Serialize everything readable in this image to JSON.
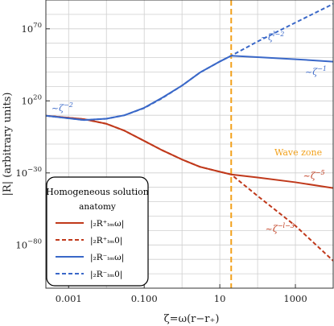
{
  "chart_data": {
    "type": "line",
    "xlabel": "ζ=ω(r−r₊)",
    "ylabel": "|R| (arbitrary units)",
    "x_scale": "log",
    "y_scale": "log",
    "xlim": [
      0.00025,
      10000
    ],
    "ylim": [
      1e-110,
      1e+90
    ],
    "grid": true,
    "x_ticks": [
      {
        "value": 0.001,
        "label": "0.001"
      },
      {
        "value": 0.1,
        "label": "0.100"
      },
      {
        "value": 10,
        "label": "10"
      },
      {
        "value": 1000,
        "label": "1000"
      }
    ],
    "y_ticks": [
      {
        "exp": 70,
        "label": "10^70"
      },
      {
        "exp": 20,
        "label": "10^20"
      },
      {
        "exp": -30,
        "label": "10^−30"
      },
      {
        "exp": -80,
        "label": "10^−80"
      }
    ],
    "vertical_line": {
      "x": 20,
      "color": "#f2a11b",
      "label": "Wave zone"
    },
    "series": [
      {
        "name": "|₂R⁺ₗₘω|",
        "color": "#c0391b",
        "dash": false,
        "points": [
          [
            0.00025,
            9.7
          ],
          [
            0.0025,
            7.3
          ],
          [
            0.01,
            4.1
          ],
          [
            0.03,
            -0.7
          ],
          [
            0.1,
            -7.8
          ],
          [
            0.3,
            -14.3
          ],
          [
            1,
            -20.7
          ],
          [
            3,
            -25.8
          ],
          [
            10,
            -29.2
          ],
          [
            20,
            -31.1
          ],
          [
            100,
            -33.2
          ],
          [
            1000,
            -36.5
          ],
          [
            10000,
            -40.5
          ]
        ]
      },
      {
        "name": "|₂R⁺ₗₘ0|",
        "color": "#c0391b",
        "dash": true,
        "points": [
          [
            0.00025,
            9.7
          ],
          [
            0.0025,
            7.3
          ],
          [
            0.01,
            4.1
          ],
          [
            0.03,
            -0.7
          ],
          [
            0.1,
            -7.8
          ],
          [
            0.3,
            -14.3
          ],
          [
            1,
            -20.7
          ],
          [
            3,
            -25.8
          ],
          [
            10,
            -29.2
          ],
          [
            20,
            -31.1
          ],
          [
            100,
            -46.0
          ],
          [
            1000,
            -66.7
          ],
          [
            10000,
            -91.0
          ]
        ]
      },
      {
        "name": "|₂R⁻ₗₘω|",
        "color": "#3a68c8",
        "dash": false,
        "points": [
          [
            0.00025,
            9.7
          ],
          [
            0.0025,
            6.7
          ],
          [
            0.01,
            7.6
          ],
          [
            0.03,
            10.0
          ],
          [
            0.1,
            15.2
          ],
          [
            0.3,
            22.2
          ],
          [
            1,
            30.6
          ],
          [
            3,
            39.7
          ],
          [
            10,
            47.3
          ],
          [
            20,
            51.3
          ],
          [
            100,
            50.3
          ],
          [
            1000,
            48.9
          ],
          [
            10000,
            47.2
          ]
        ]
      },
      {
        "name": "|₂R⁻ₗₘ0|",
        "color": "#3a68c8",
        "dash": true,
        "points": [
          [
            0.00025,
            9.7
          ],
          [
            0.0025,
            6.7
          ],
          [
            0.01,
            7.6
          ],
          [
            0.03,
            10.0
          ],
          [
            0.1,
            15.0
          ],
          [
            0.3,
            21.9
          ],
          [
            1,
            30.6
          ],
          [
            3,
            39.7
          ],
          [
            10,
            47.3
          ],
          [
            20,
            51.3
          ],
          [
            100,
            61.2
          ],
          [
            1000,
            74.3
          ],
          [
            10000,
            87.3
          ]
        ]
      }
    ],
    "annotations": [
      {
        "text": "~ζ^−2",
        "x": 0.00035,
        "yexp": 13.0,
        "color": "#3a68c8"
      },
      {
        "text": "~ζ^−1",
        "x": 1800,
        "yexp": 38.0,
        "color": "#3a68c8"
      },
      {
        "text": "~ζ^l−2",
        "x": 120,
        "yexp": 62.0,
        "color": "#3a68c8"
      },
      {
        "text": "~ζ^−5",
        "x": 1600,
        "yexp": -34.0,
        "color": "#c0391b"
      },
      {
        "text": "~ζ^−l−3",
        "x": 160,
        "yexp": -71.0,
        "color": "#c0391b"
      }
    ]
  },
  "legend": {
    "title": "Homogeneous solution",
    "subtitle": "anatomy",
    "items": [
      {
        "label": "|₂R⁺ₗₘω|"
      },
      {
        "label": "|₂R⁺ₗₘ0|"
      },
      {
        "label": "|₂R⁻ₗₘω|"
      },
      {
        "label": "|₂R⁻ₗₘ0|"
      }
    ]
  }
}
